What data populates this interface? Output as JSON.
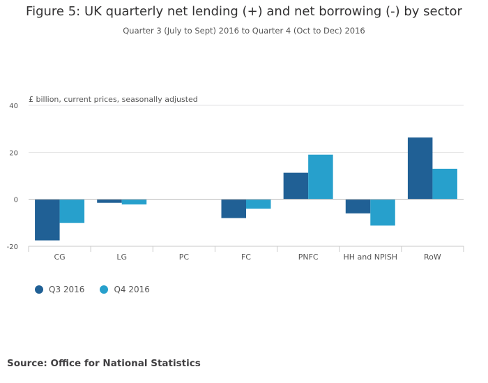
{
  "header": {
    "title": "Figure 5: UK quarterly net lending (+) and net borrowing (-) by sector",
    "subtitle": "Quarter 3 (July to Sept) 2016 to Quarter 4 (Oct to Dec) 2016"
  },
  "source": "Source: Office for National Statistics",
  "colors": {
    "q3": "#206095",
    "q4": "#27a0cc"
  },
  "chart_data": {
    "type": "bar",
    "title": "Figure 5: UK quarterly net lending (+) and net borrowing (-) by sector",
    "ylabel": "£ billion, current prices, seasonally adjusted",
    "xlabel": "",
    "categories": [
      "CG",
      "LG",
      "PC",
      "FC",
      "PNFC",
      "HH and NPISH",
      "RoW"
    ],
    "series": [
      {
        "name": "Q3 2016",
        "values": [
          -17.5,
          -1.5,
          0,
          -8,
          11.3,
          -6,
          26.3
        ]
      },
      {
        "name": "Q4 2016",
        "values": [
          -10.1,
          -2.2,
          0,
          -4,
          19,
          -11.2,
          13
        ]
      }
    ],
    "yticks": [
      40,
      20,
      0,
      -20
    ],
    "ylim": [
      -20,
      40
    ],
    "grid": true,
    "legend": "bottom-left"
  }
}
